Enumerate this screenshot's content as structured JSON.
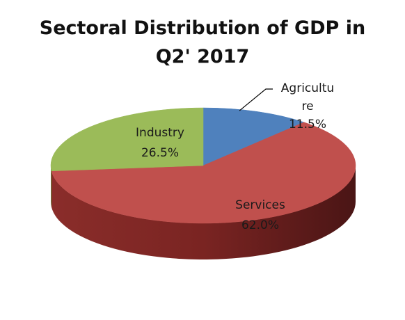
{
  "chart_data": {
    "type": "pie",
    "title_lines": [
      "Sectoral Distribution of GDP in",
      "Q2' 2017"
    ],
    "categories": [
      "Agriculture",
      "Services",
      "Industry"
    ],
    "values": [
      11.5,
      62.0,
      26.5
    ],
    "value_labels": [
      "11.5%",
      "62.0%",
      "26.5%"
    ],
    "label_lines": [
      [
        "Agricultu",
        "re"
      ],
      [
        "Services"
      ],
      [
        "Industry"
      ]
    ],
    "colors": [
      "#4f81bd",
      "#c0504d",
      "#9bbb59"
    ],
    "style": "3d",
    "legend": "none"
  }
}
